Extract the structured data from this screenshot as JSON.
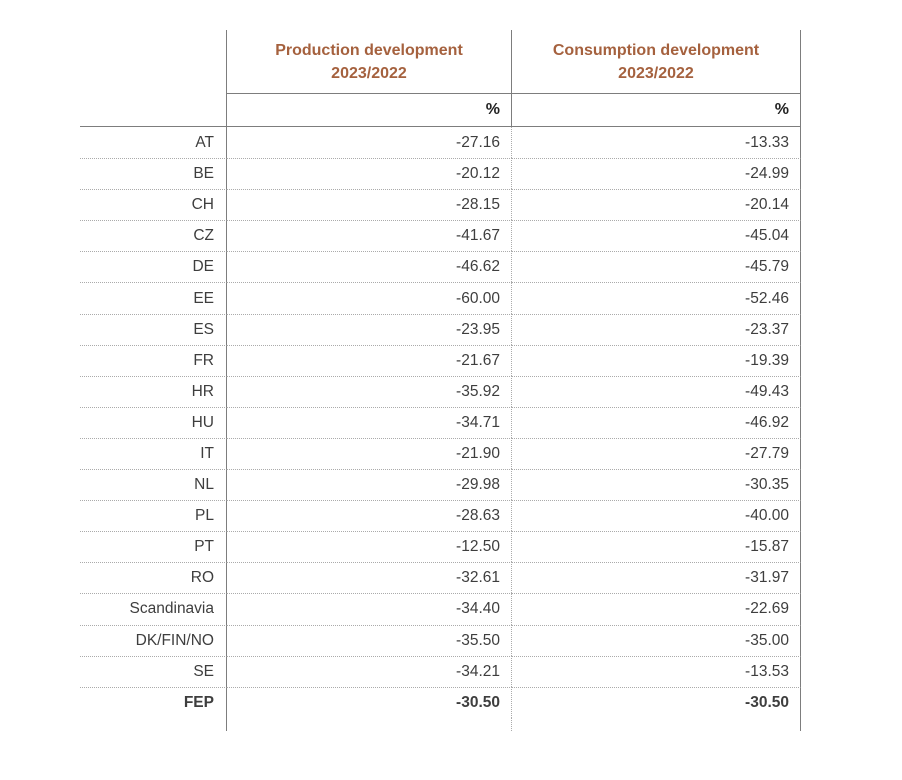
{
  "table": {
    "headers": [
      {
        "title_line1": "Production development",
        "title_line2": "2023/2022",
        "unit": "%"
      },
      {
        "title_line1": "Consumption development",
        "title_line2": "2023/2022",
        "unit": "%"
      }
    ],
    "rows": [
      {
        "label": "AT",
        "production": "-27.16",
        "consumption": "-13.33"
      },
      {
        "label": "BE",
        "production": "-20.12",
        "consumption": "-24.99"
      },
      {
        "label": "CH",
        "production": "-28.15",
        "consumption": "-20.14"
      },
      {
        "label": "CZ",
        "production": "-41.67",
        "consumption": "-45.04"
      },
      {
        "label": "DE",
        "production": "-46.62",
        "consumption": "-45.79"
      },
      {
        "label": "EE",
        "production": "-60.00",
        "consumption": "-52.46"
      },
      {
        "label": "ES",
        "production": "-23.95",
        "consumption": "-23.37"
      },
      {
        "label": "FR",
        "production": "-21.67",
        "consumption": "-19.39"
      },
      {
        "label": "HR",
        "production": "-35.92",
        "consumption": "-49.43"
      },
      {
        "label": "HU",
        "production": "-34.71",
        "consumption": "-46.92"
      },
      {
        "label": "IT",
        "production": "-21.90",
        "consumption": "-27.79"
      },
      {
        "label": "NL",
        "production": "-29.98",
        "consumption": "-30.35"
      },
      {
        "label": "PL",
        "production": "-28.63",
        "consumption": "-40.00"
      },
      {
        "label": "PT",
        "production": "-12.50",
        "consumption": "-15.87"
      },
      {
        "label": "RO",
        "production": "-32.61",
        "consumption": "-31.97"
      },
      {
        "label": "Scandinavia",
        "production": "-34.40",
        "consumption": "-22.69"
      },
      {
        "label": "DK/FIN/NO",
        "production": "-35.50",
        "consumption": "-35.00"
      },
      {
        "label": "SE",
        "production": "-34.21",
        "consumption": "-13.53"
      },
      {
        "label": "FEP",
        "production": "-30.50",
        "consumption": "-30.50",
        "bold": true
      }
    ],
    "colors": {
      "header_text": "#A5613E",
      "body_text": "#3E3E3E",
      "solid_line": "#7D7D7D",
      "dotted_line": "#ABABAB"
    }
  }
}
